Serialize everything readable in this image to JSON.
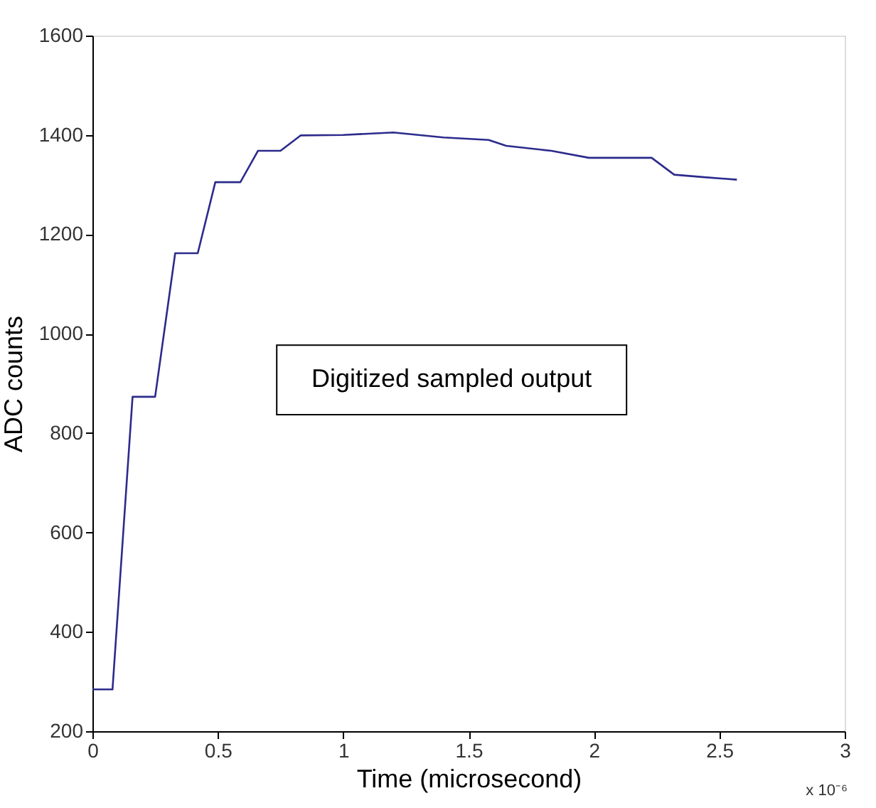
{
  "chart_data": {
    "type": "line",
    "xlabel": "Time (microsecond)",
    "ylabel": "ADC counts",
    "x": [
      0,
      0.08,
      0.16,
      0.25,
      0.33,
      0.42,
      0.49,
      0.59,
      0.66,
      0.75,
      0.83,
      1.0,
      1.2,
      1.3,
      1.4,
      1.58,
      1.65,
      1.83,
      1.98,
      2.23,
      2.32,
      2.44,
      2.57
    ],
    "series": [
      {
        "color": "#2b2b8c",
        "values": [
          284,
          284,
          873,
          873,
          1162,
          1162,
          1305,
          1305,
          1368,
          1368,
          1399,
          1400,
          1405,
          1400,
          1395,
          1390,
          1378,
          1368,
          1354,
          1354,
          1320,
          1315,
          1310
        ]
      }
    ],
    "xlim": [
      0,
      3
    ],
    "xticks": [
      0,
      0.5,
      1,
      1.5,
      2,
      2.5,
      3
    ],
    "ylim": [
      200,
      1600
    ],
    "yticks": [
      200,
      400,
      600,
      800,
      1000,
      1200,
      1400,
      1600
    ],
    "grid": false,
    "marker": "none",
    "line_style": "solid",
    "annotations": [
      "Digitized sampled output",
      "x 10⁻⁶"
    ]
  }
}
